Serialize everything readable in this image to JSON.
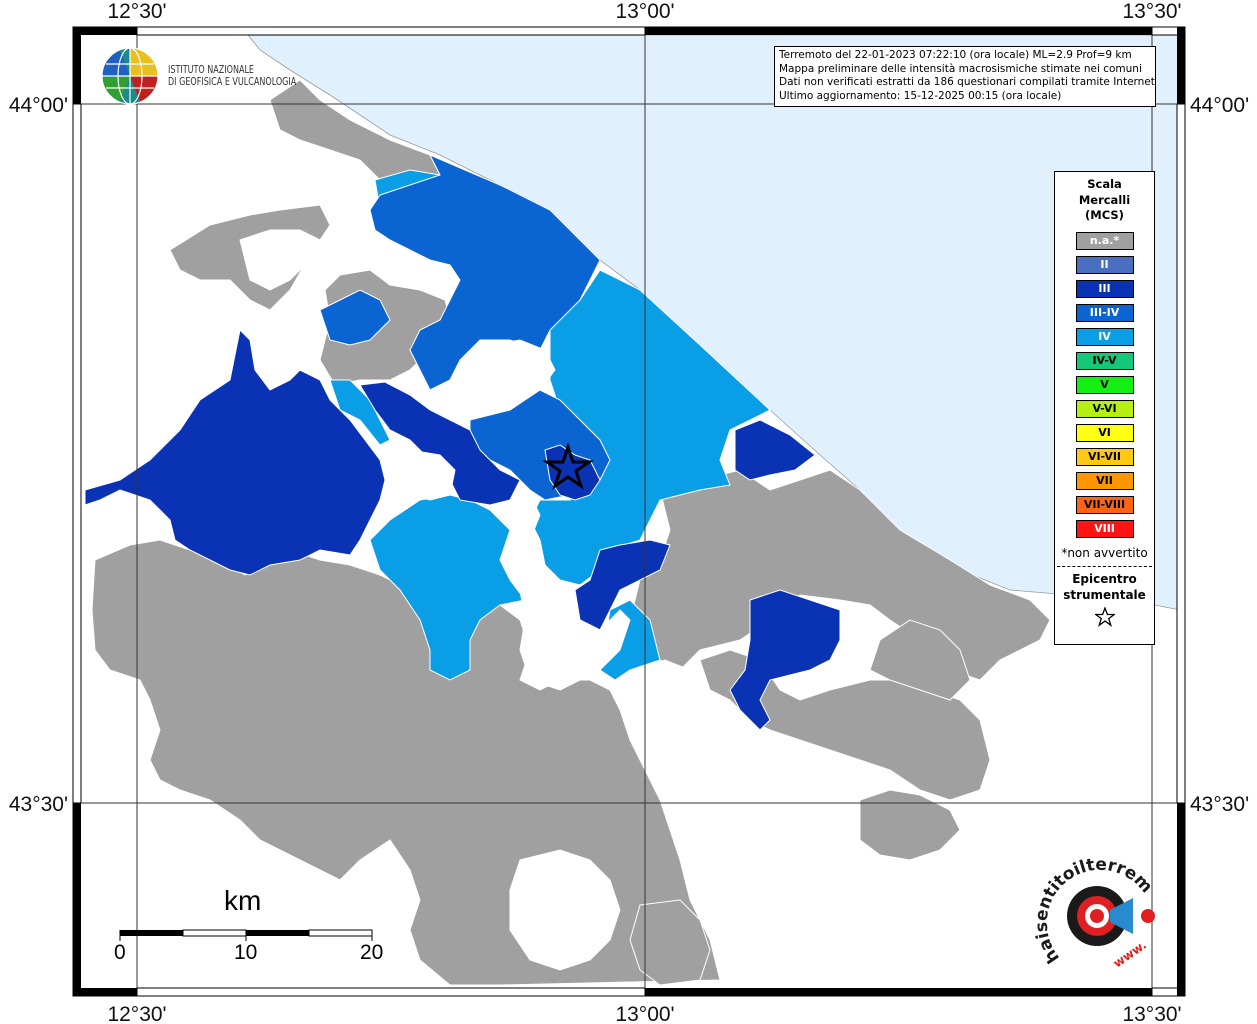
{
  "header": {
    "organization_line1": "ISTITUTO NAZIONALE",
    "organization_line2": "DI GEOFISICA E VULCANOLOGIA"
  },
  "info": {
    "line1": "Terremoto del 22-01-2023 07:22:10 (ora locale) ML=2.9 Prof=9 km",
    "line2": "Mappa preliminare delle intensità macrosismiche stimate nei comuni",
    "line3": "Dati non verificati estratti da 186 questionari compilati tramite Internet.",
    "line4": "Ultimo aggiornamento: 15-12-2025 00:15 (ora locale)"
  },
  "axes": {
    "top": [
      "12°30'",
      "13°00'",
      "13°30'"
    ],
    "bottom": [
      "12°30'",
      "13°00'",
      "13°30'"
    ],
    "left": [
      "44°00'",
      "43°30'"
    ],
    "right": [
      "44°00'",
      "43°30'"
    ]
  },
  "legend": {
    "title_line1": "Scala",
    "title_line2": "Mercalli",
    "title_line3": "(MCS)",
    "items": [
      {
        "label": "n.a.*",
        "color": "#a0a0a0",
        "text_color": "#ffffff"
      },
      {
        "label": "II",
        "color": "#4a6fc0",
        "text_color": "#ffffff"
      },
      {
        "label": "III",
        "color": "#0a32b4",
        "text_color": "#ffffff"
      },
      {
        "label": "III-IV",
        "color": "#0a64d2",
        "text_color": "#ffffff"
      },
      {
        "label": "IV",
        "color": "#0a9ee6",
        "text_color": "#ffffff"
      },
      {
        "label": "IV-V",
        "color": "#14c878",
        "text_color": "#000000"
      },
      {
        "label": "V",
        "color": "#14f014",
        "text_color": "#000000"
      },
      {
        "label": "V-VI",
        "color": "#b4f014",
        "text_color": "#000000"
      },
      {
        "label": "VI",
        "color": "#ffff14",
        "text_color": "#000000"
      },
      {
        "label": "VI-VII",
        "color": "#ffc814",
        "text_color": "#000000"
      },
      {
        "label": "VII",
        "color": "#ff9600",
        "text_color": "#000000"
      },
      {
        "label": "VII-VIII",
        "color": "#ff6414",
        "text_color": "#000000"
      },
      {
        "label": "VIII",
        "color": "#ff1414",
        "text_color": "#ffffff"
      }
    ],
    "note": "*non avvertito",
    "epicenter_line1": "Epicentro",
    "epicenter_line2": "strumentale"
  },
  "scale": {
    "title": "km",
    "ticks": [
      "0",
      "10",
      "20"
    ]
  },
  "watermark": {
    "text": "haisentitoilterremoto.it",
    "site": "www."
  },
  "colors": {
    "sea": "#e0f0fc",
    "na": "#a0a0a0",
    "ii": "#4a6fc0",
    "iii": "#0a32b4",
    "iii_iv": "#0a64d2",
    "iv": "#0a9ee6",
    "border": "#000000"
  }
}
